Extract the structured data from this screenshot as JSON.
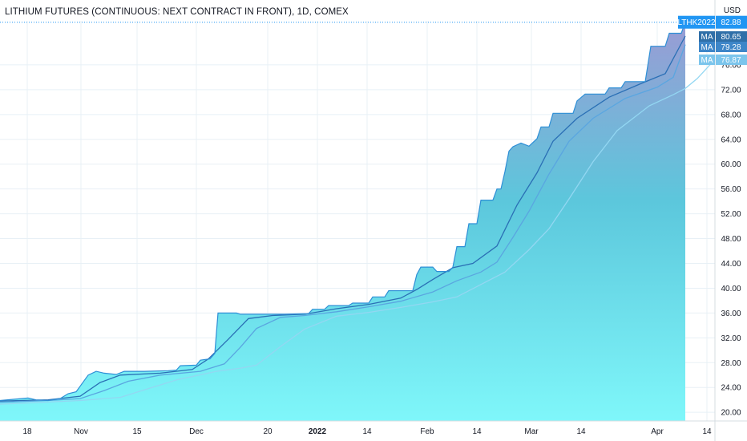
{
  "header": {
    "title": "LITHIUM FUTURES (CONTINUOUS: NEXT CONTRACT IN FRONT), 1D, COMEX",
    "currency": "USD"
  },
  "colors": {
    "price_line": "#2e8fd6",
    "area_top": "#8c8fd8",
    "area_mid": "#58cde0",
    "area_bottom": "#7cf6f9",
    "ma_colors": [
      "#2a6fb5",
      "#5aa6e0",
      "#93d7f2"
    ],
    "grid": "#e8f0f6",
    "badge_main": "#2196f3",
    "badge_ma": "#4a90c8"
  },
  "badges": {
    "symbol": "LTHK2022",
    "last": "82.88",
    "ma": [
      {
        "label": "MA",
        "value": "80.65"
      },
      {
        "label": "MA",
        "value": "79.28"
      },
      {
        "label": "MA",
        "value": "76.87"
      }
    ]
  },
  "chart_data": {
    "type": "area",
    "title": "LITHIUM FUTURES (CONTINUOUS: NEXT CONTRACT IN FRONT), 1D, COMEX",
    "ylabel": "USD",
    "ylim": [
      18.6,
      83.1
    ],
    "y_ticks": [
      "20.00",
      "24.00",
      "28.00",
      "32.00",
      "36.00",
      "40.00",
      "44.00",
      "48.00",
      "52.00",
      "56.00",
      "60.00",
      "64.00",
      "68.00",
      "72.00",
      "76.00"
    ],
    "x_ticks": [
      "18",
      "Nov",
      "15",
      "Dec",
      "20",
      "2022",
      "14",
      "Feb",
      "14",
      "Mar",
      "14",
      "Apr",
      "14"
    ],
    "x_bold": [
      "2022"
    ],
    "series": [
      {
        "name": "LTHK2022",
        "values": [
          [
            0,
            21.9
          ],
          [
            35,
            22.3
          ],
          [
            45,
            22.0
          ],
          [
            60,
            21.9
          ],
          [
            75,
            22.2
          ],
          [
            85,
            23.0
          ],
          [
            95,
            23.3
          ],
          [
            100,
            24.2
          ],
          [
            110,
            26.0
          ],
          [
            120,
            26.6
          ],
          [
            130,
            26.3
          ],
          [
            145,
            26.1
          ],
          [
            155,
            26.6
          ],
          [
            180,
            26.6
          ],
          [
            210,
            26.7
          ],
          [
            220,
            26.8
          ],
          [
            225,
            27.5
          ],
          [
            245,
            27.6
          ],
          [
            250,
            28.4
          ],
          [
            262,
            28.6
          ],
          [
            268,
            29.5
          ],
          [
            272,
            36.0
          ],
          [
            295,
            36.0
          ],
          [
            300,
            35.8
          ],
          [
            355,
            35.8
          ],
          [
            385,
            35.9
          ],
          [
            390,
            36.6
          ],
          [
            405,
            36.6
          ],
          [
            410,
            37.2
          ],
          [
            435,
            37.2
          ],
          [
            440,
            37.6
          ],
          [
            460,
            37.6
          ],
          [
            465,
            38.6
          ],
          [
            480,
            38.6
          ],
          [
            485,
            39.6
          ],
          [
            515,
            39.6
          ],
          [
            520,
            42.2
          ],
          [
            525,
            43.4
          ],
          [
            540,
            43.4
          ],
          [
            545,
            42.7
          ],
          [
            560,
            42.7
          ],
          [
            565,
            43.4
          ],
          [
            570,
            46.7
          ],
          [
            580,
            46.7
          ],
          [
            585,
            50.4
          ],
          [
            595,
            50.4
          ],
          [
            600,
            54.2
          ],
          [
            615,
            54.2
          ],
          [
            620,
            56.0
          ],
          [
            625,
            56.0
          ],
          [
            630,
            58.8
          ],
          [
            635,
            62.1
          ],
          [
            640,
            62.8
          ],
          [
            650,
            63.4
          ],
          [
            660,
            62.9
          ],
          [
            670,
            64.1
          ],
          [
            675,
            66.0
          ],
          [
            685,
            66.0
          ],
          [
            690,
            68.2
          ],
          [
            715,
            68.2
          ],
          [
            720,
            70.2
          ],
          [
            730,
            71.3
          ],
          [
            755,
            71.3
          ],
          [
            760,
            72.3
          ],
          [
            775,
            72.3
          ],
          [
            780,
            73.3
          ],
          [
            805,
            73.3
          ],
          [
            812,
            79.0
          ],
          [
            830,
            79.0
          ],
          [
            835,
            81.1
          ],
          [
            850,
            81.1
          ],
          [
            855,
            82.88
          ]
        ]
      },
      {
        "name": "MA",
        "values": [
          [
            0,
            21.8
          ],
          [
            60,
            22.0
          ],
          [
            100,
            22.6
          ],
          [
            125,
            24.8
          ],
          [
            150,
            26.0
          ],
          [
            200,
            26.3
          ],
          [
            240,
            26.9
          ],
          [
            260,
            28.6
          ],
          [
            285,
            31.8
          ],
          [
            310,
            35.1
          ],
          [
            340,
            35.6
          ],
          [
            380,
            35.8
          ],
          [
            420,
            36.7
          ],
          [
            460,
            37.4
          ],
          [
            500,
            38.4
          ],
          [
            520,
            39.8
          ],
          [
            540,
            41.4
          ],
          [
            565,
            43.3
          ],
          [
            590,
            44.0
          ],
          [
            620,
            46.8
          ],
          [
            645,
            53.4
          ],
          [
            670,
            58.6
          ],
          [
            690,
            63.7
          ],
          [
            720,
            67.4
          ],
          [
            760,
            70.8
          ],
          [
            800,
            73.0
          ],
          [
            830,
            74.6
          ],
          [
            855,
            80.65
          ]
        ]
      },
      {
        "name": "MA",
        "values": [
          [
            0,
            21.6
          ],
          [
            60,
            21.9
          ],
          [
            100,
            22.2
          ],
          [
            130,
            23.5
          ],
          [
            160,
            25.0
          ],
          [
            200,
            26.0
          ],
          [
            250,
            26.6
          ],
          [
            280,
            27.8
          ],
          [
            300,
            30.5
          ],
          [
            320,
            33.5
          ],
          [
            350,
            35.3
          ],
          [
            380,
            35.6
          ],
          [
            420,
            36.2
          ],
          [
            460,
            37.0
          ],
          [
            500,
            37.9
          ],
          [
            540,
            39.4
          ],
          [
            570,
            41.2
          ],
          [
            600,
            42.6
          ],
          [
            620,
            44.2
          ],
          [
            640,
            48.2
          ],
          [
            660,
            52.4
          ],
          [
            685,
            58.4
          ],
          [
            710,
            63.7
          ],
          [
            740,
            67.4
          ],
          [
            780,
            70.6
          ],
          [
            820,
            72.4
          ],
          [
            840,
            74.0
          ],
          [
            855,
            79.28
          ]
        ]
      },
      {
        "name": "MA",
        "values": [
          [
            0,
            21.3
          ],
          [
            50,
            21.6
          ],
          [
            100,
            21.9
          ],
          [
            150,
            22.4
          ],
          [
            180,
            23.6
          ],
          [
            220,
            25.2
          ],
          [
            270,
            26.6
          ],
          [
            300,
            27.1
          ],
          [
            320,
            27.6
          ],
          [
            350,
            30.6
          ],
          [
            380,
            33.4
          ],
          [
            420,
            35.5
          ],
          [
            460,
            36.1
          ],
          [
            500,
            36.9
          ],
          [
            540,
            37.8
          ],
          [
            570,
            38.6
          ],
          [
            600,
            40.6
          ],
          [
            630,
            42.6
          ],
          [
            660,
            46.2
          ],
          [
            685,
            49.6
          ],
          [
            710,
            54.4
          ],
          [
            740,
            60.4
          ],
          [
            770,
            65.4
          ],
          [
            810,
            69.4
          ],
          [
            840,
            71.2
          ],
          [
            855,
            72.2
          ],
          [
            870,
            73.8
          ],
          [
            892,
            76.87
          ]
        ]
      }
    ]
  }
}
